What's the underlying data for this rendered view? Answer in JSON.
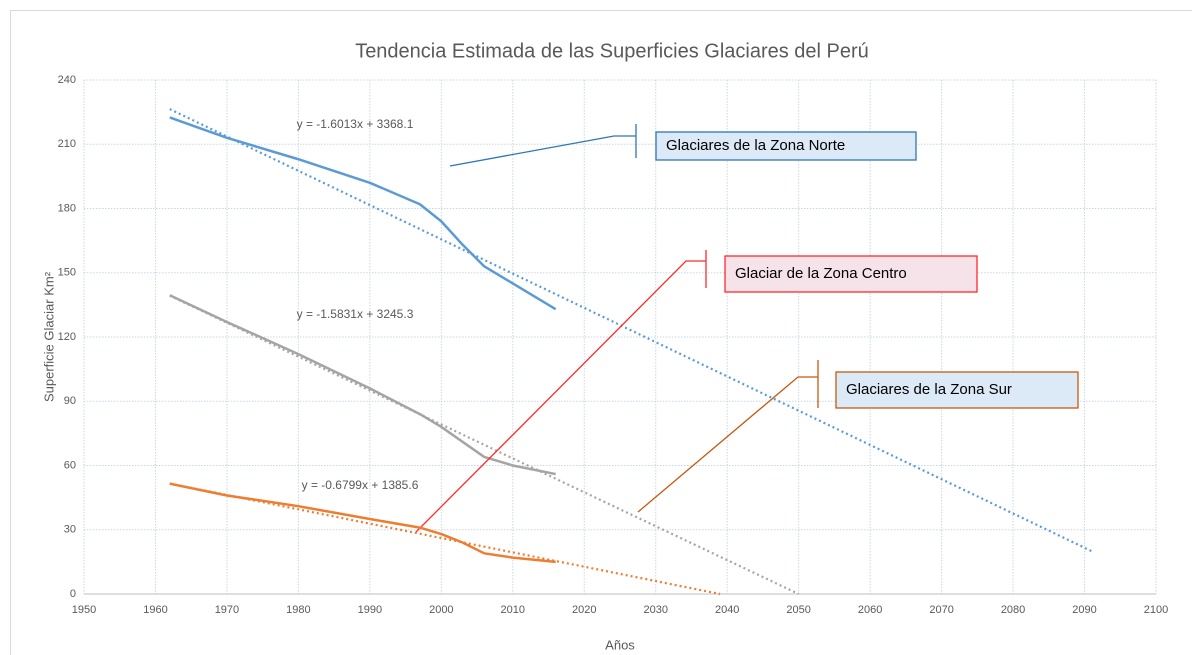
{
  "chart_data": {
    "type": "line",
    "title": "Tendencia Estimada de las Superficies Glaciares del Perú",
    "x_label": "Años",
    "y_label": "Superficie Glaciar Km²",
    "xlim": [
      1950,
      2100
    ],
    "xticks": [
      1950,
      1960,
      1970,
      1980,
      1990,
      2000,
      2010,
      2020,
      2030,
      2040,
      2050,
      2060,
      2070,
      2080,
      2090,
      2100
    ],
    "ylim": [
      0,
      240
    ],
    "yticks": [
      0,
      30,
      60,
      90,
      120,
      150,
      180,
      210,
      240
    ],
    "grid": true,
    "x": [
      1962,
      1970,
      1980,
      1990,
      1997,
      2000,
      2003,
      2006,
      2010,
      2016
    ],
    "series": [
      {
        "name": "Glaciares de la Zona Norte",
        "color": "#5b9bd5",
        "box_border": "#2e75b6",
        "box_fill": "#dce9f7",
        "values": [
          222.5,
          213,
          203,
          192,
          182,
          174,
          163,
          153,
          145,
          133
        ],
        "equation": "y = -1.6013x + 3368.1",
        "trend": {
          "x": [
            1962,
            2091
          ],
          "values": [
            226.4,
            20
          ]
        }
      },
      {
        "name": "Glaciar de la Zona Centro",
        "color": "#a5a5a5",
        "box_border": "#ff2a2a",
        "box_fill": "#f6e3ea",
        "values": [
          139.5,
          127,
          112,
          96,
          84,
          78,
          71,
          64,
          60,
          56
        ],
        "equation": "y = -1.5831x + 3245.3",
        "trend": {
          "x": [
            1962,
            2050
          ],
          "values": [
            139.3,
            0
          ]
        }
      },
      {
        "name": "Glaciares de la Zona Sur",
        "color": "#ed7d31",
        "box_border": "#c55a11",
        "box_fill": "#dce9f7",
        "values": [
          51.5,
          46,
          41,
          35,
          31,
          28,
          24,
          19,
          17,
          15
        ],
        "equation": "y = -0.6799x + 1385.6",
        "trend": {
          "x": [
            1962,
            2039
          ],
          "values": [
            51.6,
            0
          ]
        }
      }
    ]
  }
}
